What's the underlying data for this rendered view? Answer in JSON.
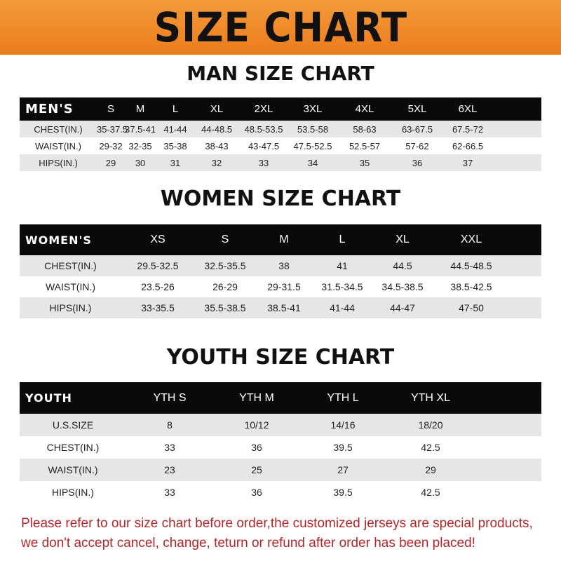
{
  "banner_title": "SIZE CHART",
  "men": {
    "title": "MAN SIZE CHART",
    "label": "MEN'S",
    "sizes": [
      "S",
      "M",
      "L",
      "XL",
      "2XL",
      "3XL",
      "4XL",
      "5XL",
      "6XL"
    ],
    "rows": [
      {
        "label": "CHEST(IN.)",
        "values": [
          "35-37.5",
          "37.5-41",
          "41-44",
          "44-48.5",
          "48.5-53.5",
          "53.5-58",
          "58-63",
          "63-67.5",
          "67.5-72"
        ]
      },
      {
        "label": "WAIST(IN.)",
        "values": [
          "29-32",
          "32-35",
          "35-38",
          "38-43",
          "43-47.5",
          "47.5-52.5",
          "52.5-57",
          "57-62",
          "62-66.5"
        ]
      },
      {
        "label": "HIPS(IN.)",
        "values": [
          "29",
          "30",
          "31",
          "32",
          "33",
          "34",
          "35",
          "36",
          "37"
        ]
      }
    ]
  },
  "women": {
    "title": "WOMEN SIZE CHART",
    "label": "WOMEN'S",
    "sizes": [
      "XS",
      "S",
      "M",
      "L",
      "XL",
      "XXL"
    ],
    "rows": [
      {
        "label": "CHEST(IN.)",
        "values": [
          "29.5-32.5",
          "32.5-35.5",
          "38",
          "41",
          "44.5",
          "44.5-48.5"
        ]
      },
      {
        "label": "WAIST(IN.)",
        "values": [
          "23.5-26",
          "26-29",
          "29-31.5",
          "31.5-34.5",
          "34.5-38.5",
          "38.5-42.5"
        ]
      },
      {
        "label": "HIPS(IN.)",
        "values": [
          "33-35.5",
          "35.5-38.5",
          "38.5-41",
          "41-44",
          "44-47",
          "47-50"
        ]
      }
    ]
  },
  "youth": {
    "title": "YOUTH SIZE CHART",
    "label": "YOUTH",
    "sizes": [
      "YTH S",
      "YTH M",
      "YTH L",
      "YTH XL"
    ],
    "rows": [
      {
        "label": "U.S.SIZE",
        "values": [
          "8",
          "10/12",
          "14/16",
          "18/20"
        ]
      },
      {
        "label": "CHEST(IN.)",
        "values": [
          "33",
          "36",
          "39.5",
          "42.5"
        ]
      },
      {
        "label": "WAIST(IN.)",
        "values": [
          "23",
          "25",
          "27",
          "29"
        ]
      },
      {
        "label": "HIPS(IN.)",
        "values": [
          "33",
          "36",
          "39.5",
          "42.5"
        ]
      }
    ]
  },
  "notice": {
    "line1": "Please refer to our size chart before order,the customized jerseys are special products,",
    "line2": "we don't accept cancel, change, teturn or refund after order has been placed!"
  },
  "colors": {
    "banner": "#ee8426",
    "header_row": "#0a0a0a",
    "stripe": "#e6e6e6",
    "notice": "#b3262a"
  }
}
